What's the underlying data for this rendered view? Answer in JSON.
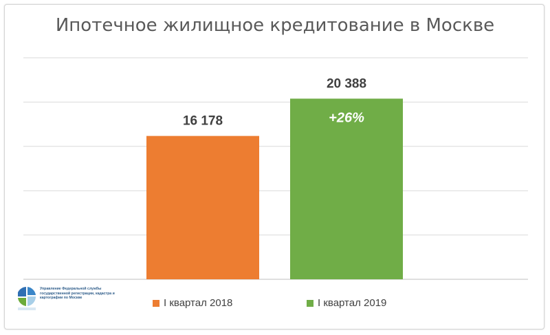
{
  "chart_data": {
    "type": "bar",
    "title": "Ипотечное жилищное кредитование в Москве",
    "categories": [
      "I квартал 2018",
      "I квартал 2019"
    ],
    "values": [
      16178,
      20388
    ],
    "value_labels": [
      "16 178",
      "20 388"
    ],
    "colors": [
      "#ED7D31",
      "#70AD47"
    ],
    "annotation": "+26%",
    "ylim": [
      0,
      25000
    ],
    "grid": true,
    "legend_placement": "bottom",
    "xlabel": "",
    "ylabel": ""
  },
  "logo": {
    "text": "Управление Федеральной службы государственной регистрации, кадастра и картографии по Москве"
  }
}
